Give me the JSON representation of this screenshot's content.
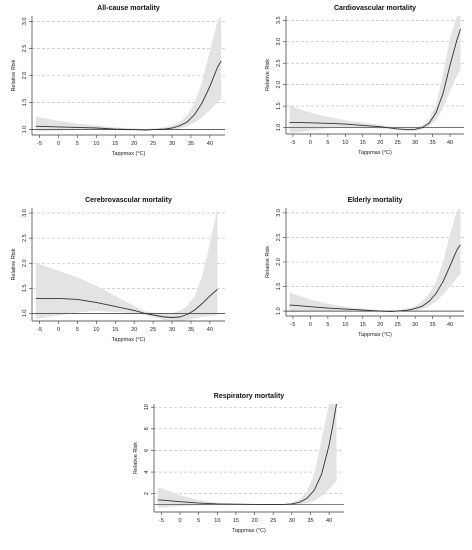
{
  "chart_data": [
    {
      "type": "line",
      "title": "All-cause mortality",
      "xlabel": "Tappmax (°C)",
      "ylabel": "Relative Risk",
      "xlim": [
        -7,
        44
      ],
      "ylim": [
        0.9,
        3.1
      ],
      "xticks": [
        -5,
        0,
        5,
        10,
        15,
        20,
        25,
        30,
        35,
        40
      ],
      "yticks": [
        1.0,
        1.5,
        2.0,
        2.5,
        3.0
      ],
      "ytick_labels": [
        "1.0",
        "1.5",
        "2.0",
        "2.5",
        "3.0"
      ],
      "grid": "dashed horizontal",
      "reference_line": 1.0,
      "series": [
        {
          "x": [
            -6,
            -5,
            0,
            5,
            10,
            15,
            20,
            23,
            25,
            28,
            30,
            32,
            34,
            36,
            38,
            40,
            42,
            43
          ],
          "y": [
            1.06,
            1.06,
            1.05,
            1.04,
            1.03,
            1.01,
            1.0,
            0.99,
            1.0,
            1.01,
            1.03,
            1.07,
            1.14,
            1.28,
            1.5,
            1.8,
            2.15,
            2.27
          ],
          "lower": [
            0.97,
            0.97,
            0.98,
            0.99,
            1.0,
            0.99,
            0.98,
            0.98,
            0.99,
            0.99,
            1.0,
            1.02,
            1.06,
            1.13,
            1.23,
            1.36,
            1.5,
            1.57
          ],
          "upper": [
            1.25,
            1.23,
            1.16,
            1.11,
            1.08,
            1.04,
            1.02,
            1.01,
            1.02,
            1.04,
            1.07,
            1.14,
            1.26,
            1.5,
            1.9,
            2.45,
            3.0,
            3.1
          ]
        }
      ]
    },
    {
      "type": "line",
      "title": "Cardiovascular mortality",
      "xlabel": "Tappmax (°C)",
      "ylabel": "Relative Risk",
      "xlim": [
        -7,
        44
      ],
      "ylim": [
        0.85,
        3.6
      ],
      "xticks": [
        -5,
        0,
        5,
        10,
        15,
        20,
        25,
        30,
        35,
        40
      ],
      "yticks": [
        1.0,
        1.5,
        2.0,
        2.5,
        3.0,
        3.5
      ],
      "ytick_labels": [
        "1.0",
        "1.5",
        "2.0",
        "2.5",
        "3.0",
        "3.5"
      ],
      "grid": "dashed horizontal",
      "reference_line": 1.0,
      "series": [
        {
          "x": [
            -6,
            -5,
            0,
            5,
            10,
            15,
            20,
            25,
            28,
            30,
            32,
            34,
            36,
            38,
            40,
            42,
            43
          ],
          "y": [
            1.12,
            1.12,
            1.11,
            1.1,
            1.08,
            1.05,
            1.02,
            0.97,
            0.95,
            0.96,
            1.0,
            1.1,
            1.35,
            1.8,
            2.45,
            3.05,
            3.3
          ],
          "lower": [
            0.88,
            0.88,
            0.93,
            0.98,
            1.0,
            0.99,
            0.98,
            0.94,
            0.92,
            0.92,
            0.95,
            1.02,
            1.18,
            1.45,
            1.85,
            2.2,
            2.35
          ],
          "upper": [
            1.52,
            1.48,
            1.35,
            1.25,
            1.17,
            1.11,
            1.06,
            1.0,
            0.98,
            1.0,
            1.05,
            1.2,
            1.55,
            2.25,
            3.1,
            3.6,
            3.6
          ]
        }
      ]
    },
    {
      "type": "line",
      "title": "Cerebrovascular mortality",
      "xlabel": "Tappmax (°C)",
      "ylabel": "Relative Risk",
      "xlim": [
        -7,
        44
      ],
      "ylim": [
        0.85,
        3.1
      ],
      "xticks": [
        -5,
        0,
        5,
        10,
        15,
        20,
        25,
        30,
        35,
        40
      ],
      "yticks": [
        1.0,
        1.5,
        2.0,
        2.5,
        3.0
      ],
      "ytick_labels": [
        "1.0",
        "1.5",
        "2.0",
        "2.5",
        "3.0"
      ],
      "grid": "dashed horizontal",
      "reference_line": 1.0,
      "series": [
        {
          "x": [
            -6,
            -5,
            0,
            5,
            10,
            15,
            20,
            23,
            25,
            28,
            30,
            32,
            34,
            36,
            38,
            40,
            42
          ],
          "y": [
            1.3,
            1.3,
            1.3,
            1.28,
            1.22,
            1.14,
            1.06,
            1.0,
            0.97,
            0.93,
            0.92,
            0.93,
            0.98,
            1.07,
            1.2,
            1.35,
            1.48
          ],
          "lower": [
            0.9,
            0.9,
            0.96,
            1.02,
            1.05,
            1.03,
            1.0,
            0.97,
            0.93,
            0.87,
            0.85,
            0.85,
            0.87,
            0.9,
            0.93,
            0.95,
            0.97
          ],
          "upper": [
            2.05,
            1.98,
            1.85,
            1.72,
            1.55,
            1.35,
            1.15,
            1.04,
            1.02,
            1.0,
            1.01,
            1.05,
            1.15,
            1.35,
            1.75,
            2.4,
            3.1
          ]
        }
      ]
    },
    {
      "type": "line",
      "title": "Elderly mortality",
      "xlabel": "Tappmax (°C)",
      "ylabel": "Relative Risk",
      "xlim": [
        -7,
        44
      ],
      "ylim": [
        0.9,
        3.1
      ],
      "xticks": [
        -5,
        0,
        5,
        10,
        15,
        20,
        25,
        30,
        35,
        40
      ],
      "yticks": [
        1.0,
        1.5,
        2.0,
        2.5,
        3.0
      ],
      "ytick_labels": [
        "1.0",
        "1.5",
        "2.0",
        "2.5",
        "3.0"
      ],
      "grid": "dashed horizontal",
      "reference_line": 1.0,
      "series": [
        {
          "x": [
            -6,
            -5,
            0,
            5,
            10,
            15,
            20,
            23,
            25,
            28,
            30,
            32,
            34,
            36,
            38,
            40,
            42,
            43
          ],
          "y": [
            1.12,
            1.12,
            1.09,
            1.06,
            1.04,
            1.02,
            1.0,
            0.99,
            1.0,
            1.02,
            1.05,
            1.1,
            1.2,
            1.36,
            1.6,
            1.92,
            2.25,
            2.35
          ],
          "lower": [
            0.98,
            0.98,
            0.99,
            1.0,
            1.0,
            0.99,
            0.98,
            0.98,
            0.99,
            1.0,
            1.01,
            1.04,
            1.1,
            1.2,
            1.33,
            1.5,
            1.68,
            1.75
          ],
          "upper": [
            1.38,
            1.35,
            1.24,
            1.15,
            1.09,
            1.05,
            1.02,
            1.01,
            1.02,
            1.05,
            1.1,
            1.2,
            1.35,
            1.6,
            2.0,
            2.55,
            3.05,
            3.1
          ]
        }
      ]
    },
    {
      "type": "line",
      "title": "Respiratory mortality",
      "xlabel": "Tappmax (°C)",
      "ylabel": "Relative Risk",
      "xlim": [
        -7,
        44
      ],
      "ylim": [
        0.3,
        10.3
      ],
      "xticks": [
        -5,
        0,
        5,
        10,
        15,
        20,
        25,
        30,
        35,
        40
      ],
      "yticks": [
        2,
        4,
        6,
        8,
        10
      ],
      "ytick_labels": [
        "2",
        "4",
        "6",
        "8",
        "10"
      ],
      "grid": "dashed horizontal",
      "reference_line": 1.0,
      "series": [
        {
          "x": [
            -6,
            -5,
            0,
            5,
            10,
            15,
            20,
            25,
            28,
            30,
            32,
            34,
            36,
            38,
            40,
            41,
            42
          ],
          "y": [
            1.4,
            1.4,
            1.25,
            1.12,
            1.05,
            1.02,
            1.0,
            0.99,
            1.0,
            1.05,
            1.2,
            1.55,
            2.3,
            3.8,
            6.5,
            8.3,
            10.3
          ],
          "lower": [
            0.7,
            0.7,
            0.85,
            0.92,
            0.95,
            0.97,
            0.97,
            0.97,
            0.96,
            0.98,
            1.02,
            1.12,
            1.35,
            1.75,
            2.4,
            2.8,
            3.2
          ],
          "upper": [
            2.6,
            2.5,
            1.85,
            1.4,
            1.18,
            1.08,
            1.04,
            1.02,
            1.05,
            1.15,
            1.45,
            2.15,
            3.8,
            7.0,
            10.3,
            10.3,
            10.3
          ]
        }
      ]
    }
  ]
}
